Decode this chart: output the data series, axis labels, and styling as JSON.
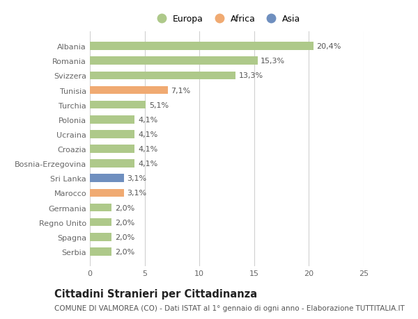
{
  "countries": [
    "Albania",
    "Romania",
    "Svizzera",
    "Tunisia",
    "Turchia",
    "Polonia",
    "Ucraina",
    "Croazia",
    "Bosnia-Erzegovina",
    "Sri Lanka",
    "Marocco",
    "Germania",
    "Regno Unito",
    "Spagna",
    "Serbia"
  ],
  "values": [
    20.4,
    15.3,
    13.3,
    7.1,
    5.1,
    4.1,
    4.1,
    4.1,
    4.1,
    3.1,
    3.1,
    2.0,
    2.0,
    2.0,
    2.0
  ],
  "labels": [
    "20,4%",
    "15,3%",
    "13,3%",
    "7,1%",
    "5,1%",
    "4,1%",
    "4,1%",
    "4,1%",
    "4,1%",
    "3,1%",
    "3,1%",
    "2,0%",
    "2,0%",
    "2,0%",
    "2,0%"
  ],
  "continents": [
    "Europa",
    "Europa",
    "Europa",
    "Africa",
    "Europa",
    "Europa",
    "Europa",
    "Europa",
    "Europa",
    "Asia",
    "Africa",
    "Europa",
    "Europa",
    "Europa",
    "Europa"
  ],
  "colors": {
    "Europa": "#aec98a",
    "Africa": "#f0aa72",
    "Asia": "#6f8fbf"
  },
  "legend_order": [
    "Europa",
    "Africa",
    "Asia"
  ],
  "legend_colors": [
    "#aec98a",
    "#f0aa72",
    "#6f8fbf"
  ],
  "legend_labels": [
    "Europa",
    "Africa",
    "Asia"
  ],
  "xlim": [
    0,
    25
  ],
  "xticks": [
    0,
    5,
    10,
    15,
    20,
    25
  ],
  "title": "Cittadini Stranieri per Cittadinanza",
  "subtitle": "COMUNE DI VALMOREA (CO) - Dati ISTAT al 1° gennaio di ogni anno - Elaborazione TUTTITALIA.IT",
  "background_color": "#ffffff",
  "grid_color": "#d0d0d0",
  "bar_height": 0.55,
  "label_fontsize": 8.0,
  "tick_fontsize": 8.0,
  "title_fontsize": 10.5,
  "subtitle_fontsize": 7.5,
  "legend_fontsize": 9.0
}
